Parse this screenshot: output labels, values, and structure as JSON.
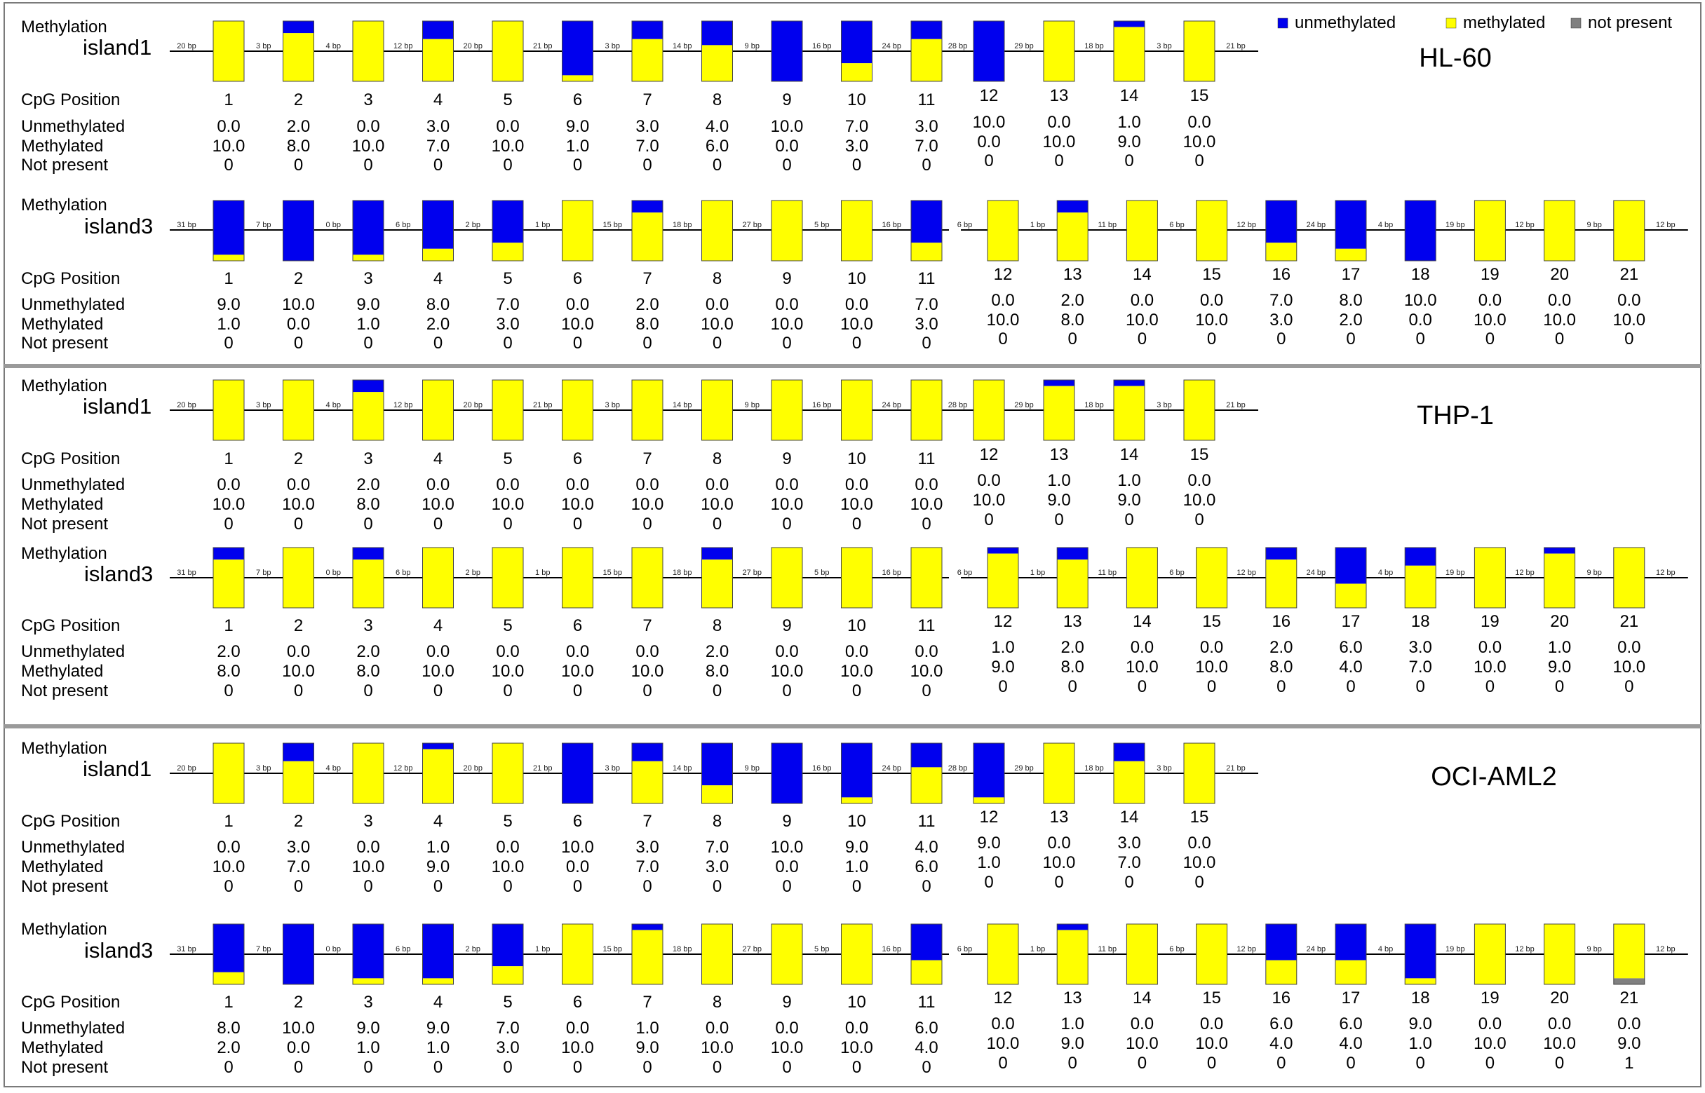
{
  "legend": [
    {
      "key": "unmethylated",
      "label": "unmethylated",
      "color": "#0000ee"
    },
    {
      "key": "methylated",
      "label": "methylated",
      "color": "#ffff00"
    },
    {
      "key": "not_present",
      "label": "not present",
      "color": "#808080"
    }
  ],
  "row_labels": {
    "methylation": "Methylation",
    "cpg_position": "CpG Position",
    "unmethylated": "Unmethylated",
    "methylated": "Methylated",
    "not_present": "Not present"
  },
  "chart_data": {
    "type": "bar",
    "stacking": "stacked-100",
    "series_colors": {
      "unmethylated": "#0000ee",
      "methylated": "#ffff00",
      "not_present": "#808080"
    },
    "panels": [
      {
        "cell_line": "HL-60",
        "islands": [
          {
            "name": "island1",
            "gaps": [
              "20 bp",
              "3 bp",
              "4 bp",
              "12 bp",
              "20 bp",
              "21 bp",
              "3 bp",
              "14 bp",
              "9 bp",
              "16 bp",
              "24 bp",
              "28 bp",
              "29 bp",
              "18 bp",
              "3 bp",
              "21 bp"
            ],
            "positions": [
              1,
              2,
              3,
              4,
              5,
              6,
              7,
              8,
              9,
              10,
              11,
              12,
              13,
              14,
              15
            ],
            "unmethylated": [
              "0.0",
              "2.0",
              "0.0",
              "3.0",
              "0.0",
              "9.0",
              "3.0",
              "4.0",
              "10.0",
              "7.0",
              "3.0",
              "10.0",
              "0.0",
              "1.0",
              "0.0"
            ],
            "methylated": [
              "10.0",
              "8.0",
              "10.0",
              "7.0",
              "10.0",
              "1.0",
              "7.0",
              "6.0",
              "0.0",
              "3.0",
              "7.0",
              "0.0",
              "10.0",
              "9.0",
              "10.0"
            ],
            "not_present": [
              "0",
              "0",
              "0",
              "0",
              "0",
              "0",
              "0",
              "0",
              "0",
              "0",
              "0",
              "0",
              "0",
              "0",
              "0"
            ]
          },
          {
            "name": "island3",
            "gaps": [
              "31 bp",
              "7 bp",
              "0 bp",
              "6 bp",
              "2 bp",
              "1 bp",
              "15 bp",
              "18 bp",
              "27 bp",
              "5 bp",
              "16 bp",
              "6 bp",
              "1 bp",
              "11 bp",
              "6 bp",
              "12 bp",
              "24 bp",
              "4 bp",
              "19 bp",
              "12 bp",
              "9 bp",
              "12 bp"
            ],
            "positions": [
              1,
              2,
              3,
              4,
              5,
              6,
              7,
              8,
              9,
              10,
              11,
              12,
              13,
              14,
              15,
              16,
              17,
              18,
              19,
              20,
              21
            ],
            "unmethylated": [
              "9.0",
              "10.0",
              "9.0",
              "8.0",
              "7.0",
              "0.0",
              "2.0",
              "0.0",
              "0.0",
              "0.0",
              "7.0",
              "0.0",
              "2.0",
              "0.0",
              "0.0",
              "7.0",
              "8.0",
              "10.0",
              "0.0",
              "0.0",
              "0.0"
            ],
            "methylated": [
              "1.0",
              "0.0",
              "1.0",
              "2.0",
              "3.0",
              "10.0",
              "8.0",
              "10.0",
              "10.0",
              "10.0",
              "3.0",
              "10.0",
              "8.0",
              "10.0",
              "10.0",
              "3.0",
              "2.0",
              "0.0",
              "10.0",
              "10.0",
              "10.0"
            ],
            "not_present": [
              "0",
              "0",
              "0",
              "0",
              "0",
              "0",
              "0",
              "0",
              "0",
              "0",
              "0",
              "0",
              "0",
              "0",
              "0",
              "0",
              "0",
              "0",
              "0",
              "0",
              "0"
            ]
          }
        ]
      },
      {
        "cell_line": "THP-1",
        "islands": [
          {
            "name": "island1",
            "gaps": [
              "20 bp",
              "3 bp",
              "4 bp",
              "12 bp",
              "20 bp",
              "21 bp",
              "3 bp",
              "14 bp",
              "9 bp",
              "16 bp",
              "24 bp",
              "28 bp",
              "29 bp",
              "18 bp",
              "3 bp",
              "21 bp"
            ],
            "positions": [
              1,
              2,
              3,
              4,
              5,
              6,
              7,
              8,
              9,
              10,
              11,
              12,
              13,
              14,
              15
            ],
            "unmethylated": [
              "0.0",
              "0.0",
              "2.0",
              "0.0",
              "0.0",
              "0.0",
              "0.0",
              "0.0",
              "0.0",
              "0.0",
              "0.0",
              "0.0",
              "1.0",
              "1.0",
              "0.0"
            ],
            "methylated": [
              "10.0",
              "10.0",
              "8.0",
              "10.0",
              "10.0",
              "10.0",
              "10.0",
              "10.0",
              "10.0",
              "10.0",
              "10.0",
              "10.0",
              "9.0",
              "9.0",
              "10.0"
            ],
            "not_present": [
              "0",
              "0",
              "0",
              "0",
              "0",
              "0",
              "0",
              "0",
              "0",
              "0",
              "0",
              "0",
              "0",
              "0",
              "0"
            ]
          },
          {
            "name": "island3",
            "gaps": [
              "31 bp",
              "7 bp",
              "0 bp",
              "6 bp",
              "2 bp",
              "1 bp",
              "15 bp",
              "18 bp",
              "27 bp",
              "5 bp",
              "16 bp",
              "6 bp",
              "1 bp",
              "11 bp",
              "6 bp",
              "12 bp",
              "24 bp",
              "4 bp",
              "19 bp",
              "12 bp",
              "9 bp",
              "12 bp"
            ],
            "positions": [
              1,
              2,
              3,
              4,
              5,
              6,
              7,
              8,
              9,
              10,
              11,
              12,
              13,
              14,
              15,
              16,
              17,
              18,
              19,
              20,
              21
            ],
            "unmethylated": [
              "2.0",
              "0.0",
              "2.0",
              "0.0",
              "0.0",
              "0.0",
              "0.0",
              "2.0",
              "0.0",
              "0.0",
              "0.0",
              "1.0",
              "2.0",
              "0.0",
              "0.0",
              "2.0",
              "6.0",
              "3.0",
              "0.0",
              "1.0",
              "0.0"
            ],
            "methylated": [
              "8.0",
              "10.0",
              "8.0",
              "10.0",
              "10.0",
              "10.0",
              "10.0",
              "8.0",
              "10.0",
              "10.0",
              "10.0",
              "9.0",
              "8.0",
              "10.0",
              "10.0",
              "8.0",
              "4.0",
              "7.0",
              "10.0",
              "9.0",
              "10.0"
            ],
            "not_present": [
              "0",
              "0",
              "0",
              "0",
              "0",
              "0",
              "0",
              "0",
              "0",
              "0",
              "0",
              "0",
              "0",
              "0",
              "0",
              "0",
              "0",
              "0",
              "0",
              "0",
              "0"
            ]
          }
        ]
      },
      {
        "cell_line": "OCI-AML2",
        "islands": [
          {
            "name": "island1",
            "gaps": [
              "20 bp",
              "3 bp",
              "4 bp",
              "12 bp",
              "20 bp",
              "21 bp",
              "3 bp",
              "14 bp",
              "9 bp",
              "16 bp",
              "24 bp",
              "28 bp",
              "29 bp",
              "18 bp",
              "3 bp",
              "21 bp"
            ],
            "positions": [
              1,
              2,
              3,
              4,
              5,
              6,
              7,
              8,
              9,
              10,
              11,
              12,
              13,
              14,
              15
            ],
            "unmethylated": [
              "0.0",
              "3.0",
              "0.0",
              "1.0",
              "0.0",
              "10.0",
              "3.0",
              "7.0",
              "10.0",
              "9.0",
              "4.0",
              "9.0",
              "0.0",
              "3.0",
              "0.0"
            ],
            "methylated": [
              "10.0",
              "7.0",
              "10.0",
              "9.0",
              "10.0",
              "0.0",
              "7.0",
              "3.0",
              "0.0",
              "1.0",
              "6.0",
              "1.0",
              "10.0",
              "7.0",
              "10.0"
            ],
            "not_present": [
              "0",
              "0",
              "0",
              "0",
              "0",
              "0",
              "0",
              "0",
              "0",
              "0",
              "0",
              "0",
              "0",
              "0",
              "0"
            ]
          },
          {
            "name": "island3",
            "gaps": [
              "31 bp",
              "7 bp",
              "0 bp",
              "6 bp",
              "2 bp",
              "1 bp",
              "15 bp",
              "18 bp",
              "27 bp",
              "5 bp",
              "16 bp",
              "6 bp",
              "1 bp",
              "11 bp",
              "6 bp",
              "12 bp",
              "24 bp",
              "4 bp",
              "19 bp",
              "12 bp",
              "9 bp",
              "12 bp"
            ],
            "positions": [
              1,
              2,
              3,
              4,
              5,
              6,
              7,
              8,
              9,
              10,
              11,
              12,
              13,
              14,
              15,
              16,
              17,
              18,
              19,
              20,
              21
            ],
            "unmethylated": [
              "8.0",
              "10.0",
              "9.0",
              "9.0",
              "7.0",
              "0.0",
              "1.0",
              "0.0",
              "0.0",
              "0.0",
              "6.0",
              "0.0",
              "1.0",
              "0.0",
              "0.0",
              "6.0",
              "6.0",
              "9.0",
              "0.0",
              "0.0",
              "0.0"
            ],
            "methylated": [
              "2.0",
              "0.0",
              "1.0",
              "1.0",
              "3.0",
              "10.0",
              "9.0",
              "10.0",
              "10.0",
              "10.0",
              "4.0",
              "10.0",
              "9.0",
              "10.0",
              "10.0",
              "4.0",
              "4.0",
              "1.0",
              "10.0",
              "10.0",
              "9.0"
            ],
            "not_present": [
              "0",
              "0",
              "0",
              "0",
              "0",
              "0",
              "0",
              "0",
              "0",
              "0",
              "0",
              "0",
              "0",
              "0",
              "0",
              "0",
              "0",
              "0",
              "0",
              "0",
              "1"
            ]
          }
        ]
      }
    ]
  }
}
